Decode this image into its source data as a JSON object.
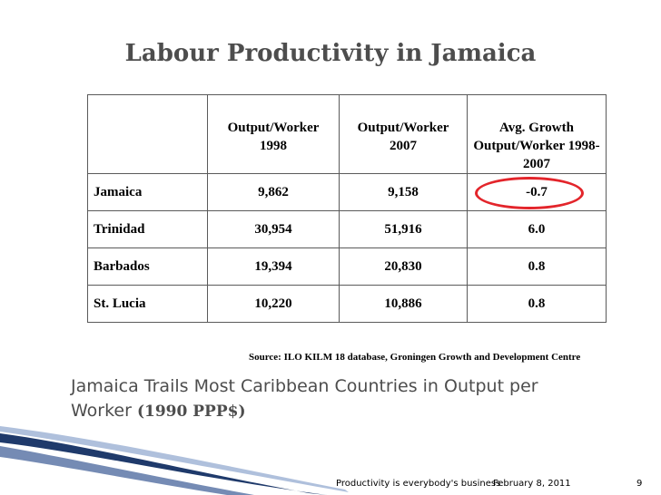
{
  "slide": {
    "title": "Labour Productivity in Jamaica",
    "subtitle_main": "Jamaica Trails Most Caribbean Countries in Output per Worker ",
    "subtitle_bold": "(1990 PPP$)",
    "source": "Source: ILO KILM 18 database, Groningen Growth and Development Centre"
  },
  "table": {
    "headers": [
      "",
      "Output/Worker 1998",
      "Output/Worker 2007",
      "Avg. Growth Output/Worker 1998-2007"
    ],
    "rows": [
      {
        "country": "Jamaica",
        "ow1998": "9,862",
        "ow2007": "9,158",
        "growth": "-0.7"
      },
      {
        "country": "Trinidad",
        "ow1998": "30,954",
        "ow2007": "51,916",
        "growth": "6.0"
      },
      {
        "country": "Barbados",
        "ow1998": "19,394",
        "ow2007": "20,830",
        "growth": "0.8"
      },
      {
        "country": "St. Lucia",
        "ow1998": "10,220",
        "ow2007": "10,886",
        "growth": "0.8"
      }
    ]
  },
  "footer": {
    "tagline": "Productivity is everybody's business",
    "date": "February 8, 2011",
    "page": "9"
  },
  "colors": {
    "title": "#4d4d4d",
    "highlight": "#e3252b",
    "swoosh": "#1f3a6b"
  }
}
